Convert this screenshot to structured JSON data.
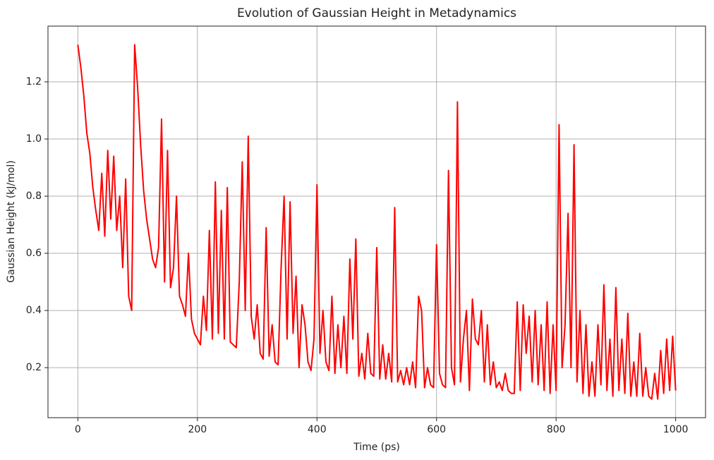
{
  "chart_data": {
    "type": "line",
    "title": "Evolution of Gaussian Height in Metadynamics",
    "x_label": "Time (ps)",
    "y_label": "Gaussian Height (kJ/mol)",
    "x": [
      0,
      5,
      10,
      15,
      20,
      25,
      30,
      35,
      40,
      45,
      50,
      55,
      60,
      65,
      70,
      75,
      80,
      85,
      90,
      95,
      100,
      105,
      110,
      115,
      120,
      125,
      130,
      135,
      140,
      145,
      150,
      155,
      160,
      165,
      170,
      175,
      180,
      185,
      190,
      195,
      200,
      205,
      210,
      215,
      220,
      225,
      230,
      235,
      240,
      245,
      250,
      255,
      260,
      265,
      270,
      275,
      280,
      285,
      290,
      295,
      300,
      305,
      310,
      315,
      320,
      325,
      330,
      335,
      340,
      345,
      350,
      355,
      360,
      365,
      370,
      375,
      380,
      385,
      390,
      395,
      400,
      405,
      410,
      415,
      420,
      425,
      430,
      435,
      440,
      445,
      450,
      455,
      460,
      465,
      470,
      475,
      480,
      485,
      490,
      495,
      500,
      505,
      510,
      515,
      520,
      525,
      530,
      535,
      540,
      545,
      550,
      555,
      560,
      565,
      570,
      575,
      580,
      585,
      590,
      595,
      600,
      605,
      610,
      615,
      620,
      625,
      630,
      635,
      640,
      645,
      650,
      655,
      660,
      665,
      670,
      675,
      680,
      685,
      690,
      695,
      700,
      705,
      710,
      715,
      720,
      725,
      730,
      735,
      740,
      745,
      750,
      755,
      760,
      765,
      770,
      775,
      780,
      785,
      790,
      795,
      800,
      805,
      810,
      815,
      820,
      825,
      830,
      835,
      840,
      845,
      850,
      855,
      860,
      865,
      870,
      875,
      880,
      885,
      890,
      895,
      900,
      905,
      910,
      915,
      920,
      925,
      930,
      935,
      940,
      945,
      950,
      955,
      960,
      965,
      970,
      975,
      980,
      985,
      990,
      995,
      1000
    ],
    "series": [
      {
        "name": "Gaussian Height",
        "color": "#ff0000",
        "values": [
          1.33,
          1.25,
          1.15,
          1.02,
          0.95,
          0.83,
          0.75,
          0.68,
          0.88,
          0.66,
          0.96,
          0.72,
          0.94,
          0.68,
          0.8,
          0.55,
          0.86,
          0.45,
          0.4,
          1.33,
          1.18,
          0.98,
          0.82,
          0.72,
          0.65,
          0.58,
          0.55,
          0.62,
          1.07,
          0.5,
          0.96,
          0.48,
          0.55,
          0.8,
          0.45,
          0.42,
          0.38,
          0.6,
          0.37,
          0.32,
          0.3,
          0.28,
          0.45,
          0.33,
          0.68,
          0.3,
          0.85,
          0.32,
          0.75,
          0.3,
          0.83,
          0.29,
          0.28,
          0.27,
          0.5,
          0.92,
          0.4,
          1.01,
          0.38,
          0.3,
          0.42,
          0.25,
          0.23,
          0.69,
          0.24,
          0.35,
          0.22,
          0.21,
          0.55,
          0.8,
          0.3,
          0.78,
          0.32,
          0.52,
          0.2,
          0.42,
          0.35,
          0.22,
          0.19,
          0.3,
          0.84,
          0.25,
          0.4,
          0.22,
          0.19,
          0.45,
          0.18,
          0.35,
          0.2,
          0.38,
          0.18,
          0.58,
          0.3,
          0.65,
          0.17,
          0.25,
          0.16,
          0.32,
          0.18,
          0.17,
          0.62,
          0.16,
          0.28,
          0.16,
          0.25,
          0.15,
          0.76,
          0.15,
          0.19,
          0.14,
          0.2,
          0.14,
          0.22,
          0.13,
          0.45,
          0.4,
          0.13,
          0.2,
          0.14,
          0.13,
          0.63,
          0.18,
          0.14,
          0.13,
          0.89,
          0.2,
          0.14,
          1.13,
          0.15,
          0.3,
          0.4,
          0.12,
          0.44,
          0.3,
          0.28,
          0.4,
          0.15,
          0.35,
          0.14,
          0.22,
          0.13,
          0.15,
          0.12,
          0.18,
          0.12,
          0.11,
          0.11,
          0.43,
          0.12,
          0.42,
          0.25,
          0.38,
          0.15,
          0.4,
          0.14,
          0.35,
          0.12,
          0.43,
          0.11,
          0.35,
          0.12,
          1.05,
          0.2,
          0.35,
          0.74,
          0.2,
          0.98,
          0.15,
          0.4,
          0.11,
          0.35,
          0.1,
          0.22,
          0.1,
          0.35,
          0.14,
          0.49,
          0.12,
          0.3,
          0.1,
          0.48,
          0.12,
          0.3,
          0.11,
          0.39,
          0.1,
          0.22,
          0.1,
          0.32,
          0.1,
          0.2,
          0.1,
          0.09,
          0.18,
          0.09,
          0.26,
          0.11,
          0.3,
          0.12,
          0.31,
          0.12
        ]
      }
    ],
    "xlim": [
      -50,
      1050
    ],
    "ylim": [
      0.025,
      1.395
    ],
    "xticks": [
      0,
      200,
      400,
      600,
      800,
      1000
    ],
    "yticks": [
      0.2,
      0.4,
      0.6,
      0.8,
      {
        "value": 1,
        "label": "1.0"
      },
      1.2
    ],
    "grid": true
  }
}
